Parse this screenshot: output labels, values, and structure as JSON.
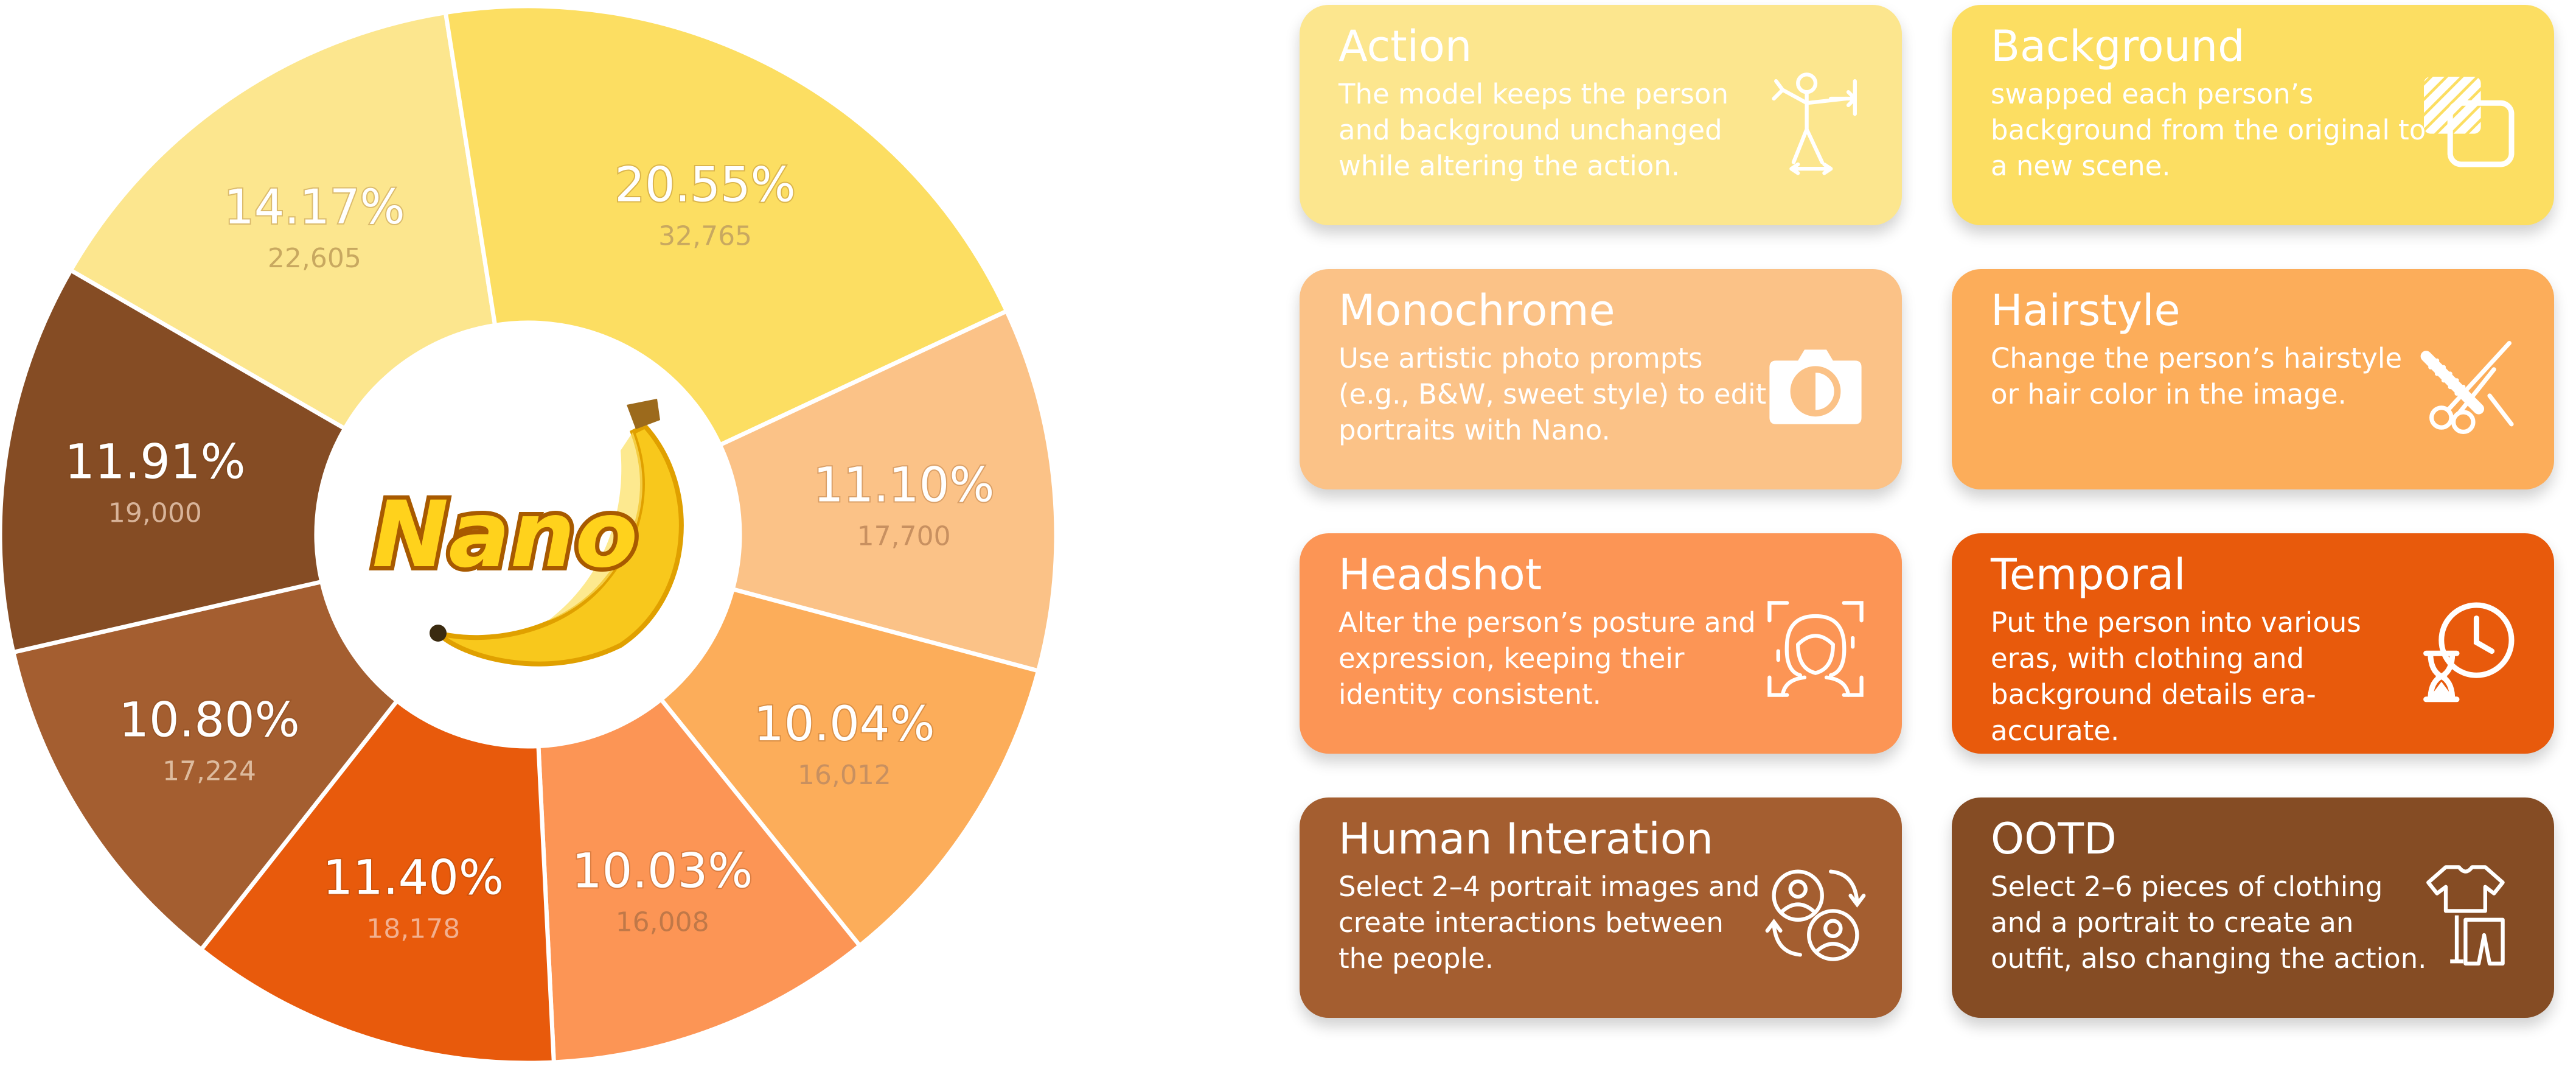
{
  "chart_data": {
    "type": "pie",
    "center_logo": "Nano",
    "slices": [
      {
        "label": "Action",
        "percent": 14.17,
        "count": "22,605",
        "percent_text": "14.17%",
        "color": "#FCE68E",
        "value_color": "#C8A860"
      },
      {
        "label": "Background",
        "percent": 20.55,
        "count": "32,765",
        "percent_text": "20.55%",
        "color": "#FCDE62",
        "value_color": "#C8A860"
      },
      {
        "label": "Monochrome",
        "percent": 11.1,
        "count": "17,700",
        "percent_text": "11.10%",
        "color": "#FBC287",
        "value_color": "#C89060"
      },
      {
        "label": "Hairstyle",
        "percent": 10.04,
        "count": "16,012",
        "percent_text": "10.04%",
        "color": "#FCAD5A",
        "value_color": "#C89060"
      },
      {
        "label": "Headshot",
        "percent": 10.03,
        "count": "16,008",
        "percent_text": "10.03%",
        "color": "#FC9555",
        "value_color": "#C07848"
      },
      {
        "label": "Temporal",
        "percent": 11.4,
        "count": "18,178",
        "percent_text": "11.40%",
        "color": "#E85A0C",
        "value_color": "#F2B090"
      },
      {
        "label": "Human Interation",
        "percent": 10.8,
        "count": "17,224",
        "percent_text": "10.80%",
        "color": "#A45E30",
        "value_color": "#DDBB9E"
      },
      {
        "label": "OOTD",
        "percent": 11.91,
        "count": "19,000",
        "percent_text": "11.91%",
        "color": "#854C24",
        "value_color": "#D8B49A"
      }
    ]
  },
  "cards": [
    {
      "title": "Action",
      "desc": "The model keeps the person and background unchanged while altering the action.",
      "color": "#FCE68E",
      "icon": "stretching-person-icon"
    },
    {
      "title": "Background",
      "desc": "swapped each person’s background from the original to a new scene.",
      "color": "#FCDE62",
      "icon": "layers-icon"
    },
    {
      "title": "Monochrome",
      "desc": "Use artistic photo prompts (e.g., B&W, sweet style) to edit portraits with Nano.",
      "color": "#FBC287",
      "icon": "camera-icon"
    },
    {
      "title": "Hairstyle",
      "desc": "Change the person’s hairstyle or hair color in the image.",
      "color": "#FCAD5A",
      "icon": "scissors-comb-icon"
    },
    {
      "title": "Headshot",
      "desc": "Alter the person’s posture and expression, keeping their identity consistent.",
      "color": "#FC9555",
      "icon": "face-scan-icon"
    },
    {
      "title": "Temporal",
      "desc": "Put the person into various eras, with clothing and background details era-accurate.",
      "color": "#E85A0C",
      "icon": "clock-hourglass-icon"
    },
    {
      "title": "Human Interation",
      "desc": "Select 2–4 portrait images and create interactions between the people.",
      "color": "#A45E30",
      "icon": "people-exchange-icon"
    },
    {
      "title": "OOTD",
      "desc": "Select 2–6 pieces of clothing and a portrait to create an outfit, also changing the action.",
      "color": "#854C24",
      "icon": "clothing-icon"
    }
  ]
}
